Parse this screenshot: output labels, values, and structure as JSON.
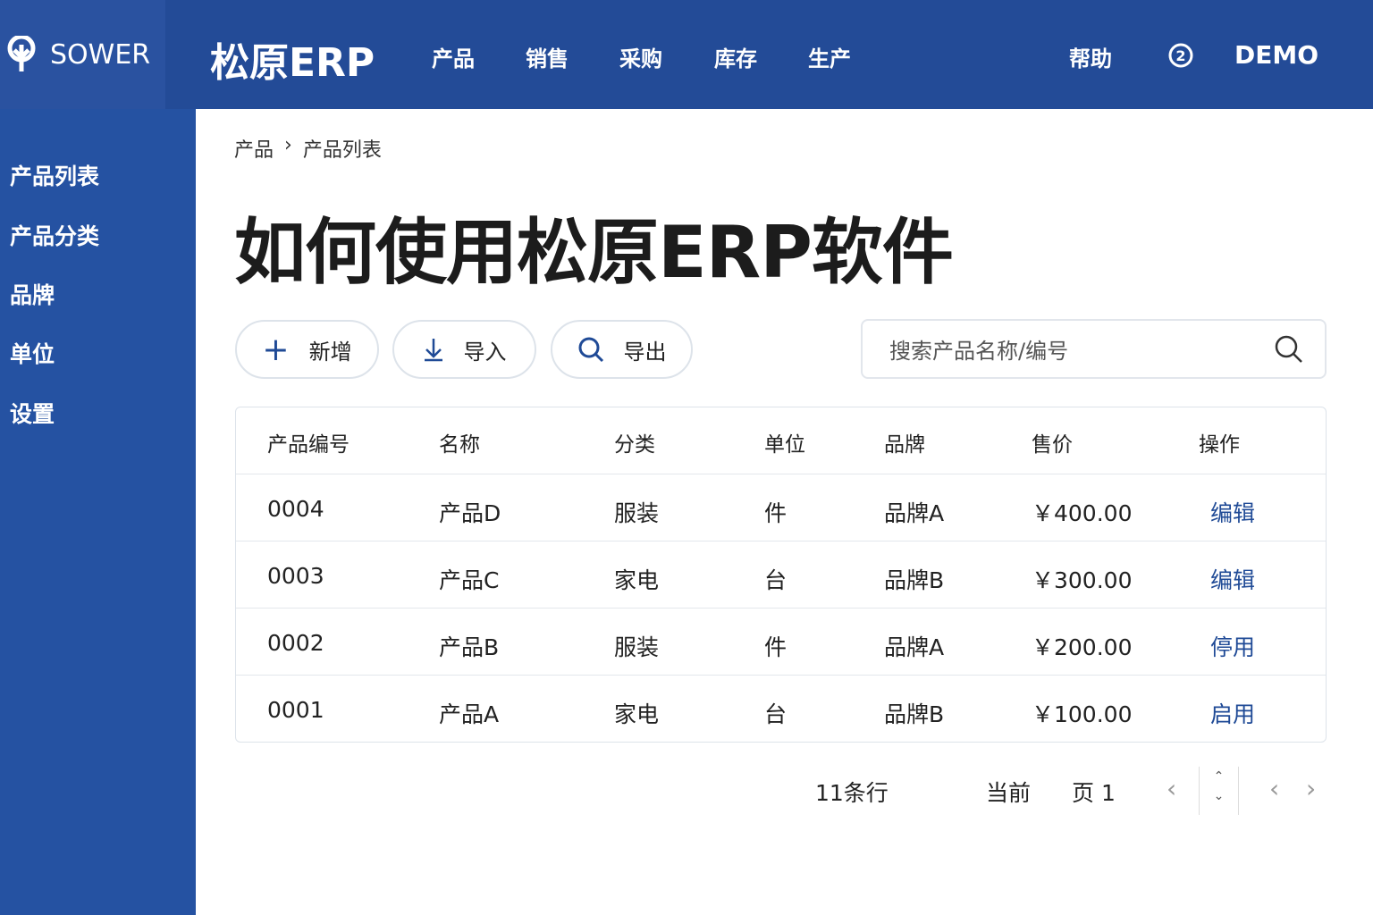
{
  "header": {
    "logo_text": "SOWER",
    "brand": "松原ERP",
    "nav": [
      "产品",
      "销售",
      "采购",
      "库存",
      "生产"
    ],
    "help": "帮助",
    "user": "DEMO",
    "colors": {
      "header": "#234b97",
      "sidebar": "#2552a2",
      "accent": "#1f4a96"
    }
  },
  "sidebar": {
    "items": [
      "产品列表",
      "产品分类",
      "品牌",
      "单位",
      "设置"
    ]
  },
  "breadcrumb": [
    "产品",
    "产品列表"
  ],
  "page_title": "如何使用松原ERP软件",
  "toolbar": {
    "add": "新增",
    "import": "导入",
    "export": "导出",
    "search_placeholder": "搜索产品名称/编号"
  },
  "table": {
    "columns": [
      "产品编号",
      "名称",
      "分类",
      "单位",
      "品牌",
      "售价",
      "操作"
    ],
    "rows": [
      [
        "0004",
        "产品D",
        "服装",
        "件",
        "品牌A",
        "￥400.00",
        "编辑"
      ],
      [
        "0003",
        "产品C",
        "家电",
        "台",
        "品牌B",
        "￥300.00",
        "编辑"
      ],
      [
        "0002",
        "产品B",
        "服装",
        "件",
        "品牌A",
        "￥200.00",
        "停用"
      ],
      [
        "0001",
        "产品A",
        "家电",
        "台",
        "品牌B",
        "￥100.00",
        "启用"
      ]
    ]
  },
  "pagination": {
    "total": "11条行",
    "current_label": "当前",
    "page": "页 1"
  }
}
